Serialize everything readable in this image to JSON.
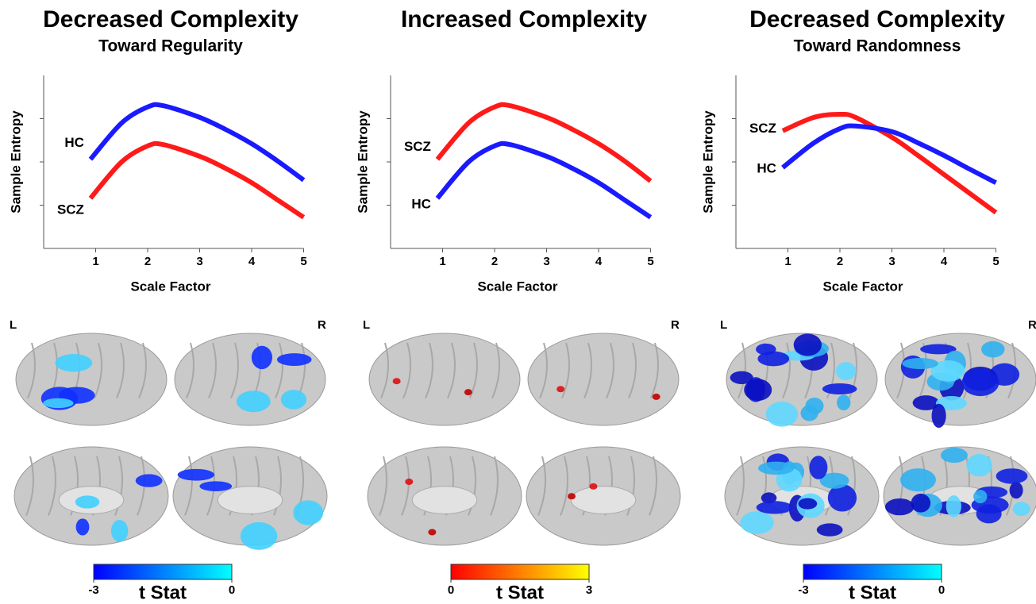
{
  "chart_data": [
    {
      "type": "line",
      "title": "Decreased Complexity",
      "subtitle": "Toward Regularity",
      "xlabel": "Scale Factor",
      "ylabel": "Sample Entropy",
      "x": [
        0.9,
        1.5,
        2,
        2.3,
        3,
        3.5,
        4,
        4.5,
        5
      ],
      "xlim": [
        0,
        5
      ],
      "xticks": [
        1,
        2,
        3,
        4,
        5
      ],
      "ylim": [
        0,
        4
      ],
      "yticks": [
        1,
        2,
        3
      ],
      "series": [
        {
          "name": "HC",
          "color": "#1a1aff",
          "values": [
            2.06,
            2.9,
            3.27,
            3.3,
            3.03,
            2.75,
            2.42,
            2.02,
            1.58
          ]
        },
        {
          "name": "SCZ",
          "color": "#ff1a1a",
          "values": [
            1.16,
            2.0,
            2.37,
            2.4,
            2.13,
            1.85,
            1.52,
            1.12,
            0.72
          ]
        }
      ]
    },
    {
      "type": "line",
      "title": "Increased Complexity",
      "xlabel": "Scale Factor",
      "ylabel": "Sample Entropy",
      "x": [
        0.9,
        1.5,
        2,
        2.3,
        3,
        3.5,
        4,
        4.5,
        5
      ],
      "xlim": [
        0,
        5
      ],
      "xticks": [
        1,
        2,
        3,
        4,
        5
      ],
      "ylim": [
        0,
        4
      ],
      "yticks": [
        1,
        2,
        3
      ],
      "series": [
        {
          "name": "SCZ",
          "color": "#ff1a1a",
          "values": [
            2.06,
            2.9,
            3.27,
            3.3,
            3.03,
            2.75,
            2.42,
            2.02,
            1.56
          ]
        },
        {
          "name": "HC",
          "color": "#1a1aff",
          "values": [
            1.16,
            2.0,
            2.37,
            2.4,
            2.13,
            1.85,
            1.52,
            1.12,
            0.72
          ]
        }
      ]
    },
    {
      "type": "line",
      "title": "Decreased Complexity",
      "subtitle": "Toward Randomness",
      "xlabel": "Scale Factor",
      "ylabel": "Sample Entropy",
      "x": [
        0.9,
        1.5,
        2,
        2.3,
        3,
        3.5,
        4,
        4.5,
        5
      ],
      "xlim": [
        0,
        5
      ],
      "xticks": [
        1,
        2,
        3,
        4,
        5
      ],
      "ylim": [
        0,
        4
      ],
      "yticks": [
        1,
        2,
        3
      ],
      "series": [
        {
          "name": "SCZ",
          "color": "#ff1a1a",
          "values": [
            2.72,
            3.03,
            3.1,
            3.03,
            2.57,
            2.15,
            1.71,
            1.27,
            0.83
          ]
        },
        {
          "name": "HC",
          "color": "#1a1aff",
          "values": [
            1.87,
            2.44,
            2.77,
            2.83,
            2.7,
            2.44,
            2.15,
            1.83,
            1.52
          ]
        }
      ]
    }
  ],
  "brain_panels": [
    {
      "left_label": "L",
      "right_label": "R",
      "colorbar": {
        "label": "t Stat",
        "ticks": [
          -3,
          0
        ],
        "colors": [
          "#0000ff",
          "#00ffff"
        ]
      }
    },
    {
      "left_label": "L",
      "right_label": "R",
      "colorbar": {
        "label": "t Stat",
        "ticks": [
          0,
          3
        ],
        "colors": [
          "#ff0000",
          "#ffff00"
        ]
      }
    },
    {
      "left_label": "L",
      "right_label": "R",
      "colorbar": {
        "label": "t Stat",
        "ticks": [
          -3,
          0
        ],
        "colors": [
          "#0000ff",
          "#00ffff"
        ]
      }
    }
  ]
}
